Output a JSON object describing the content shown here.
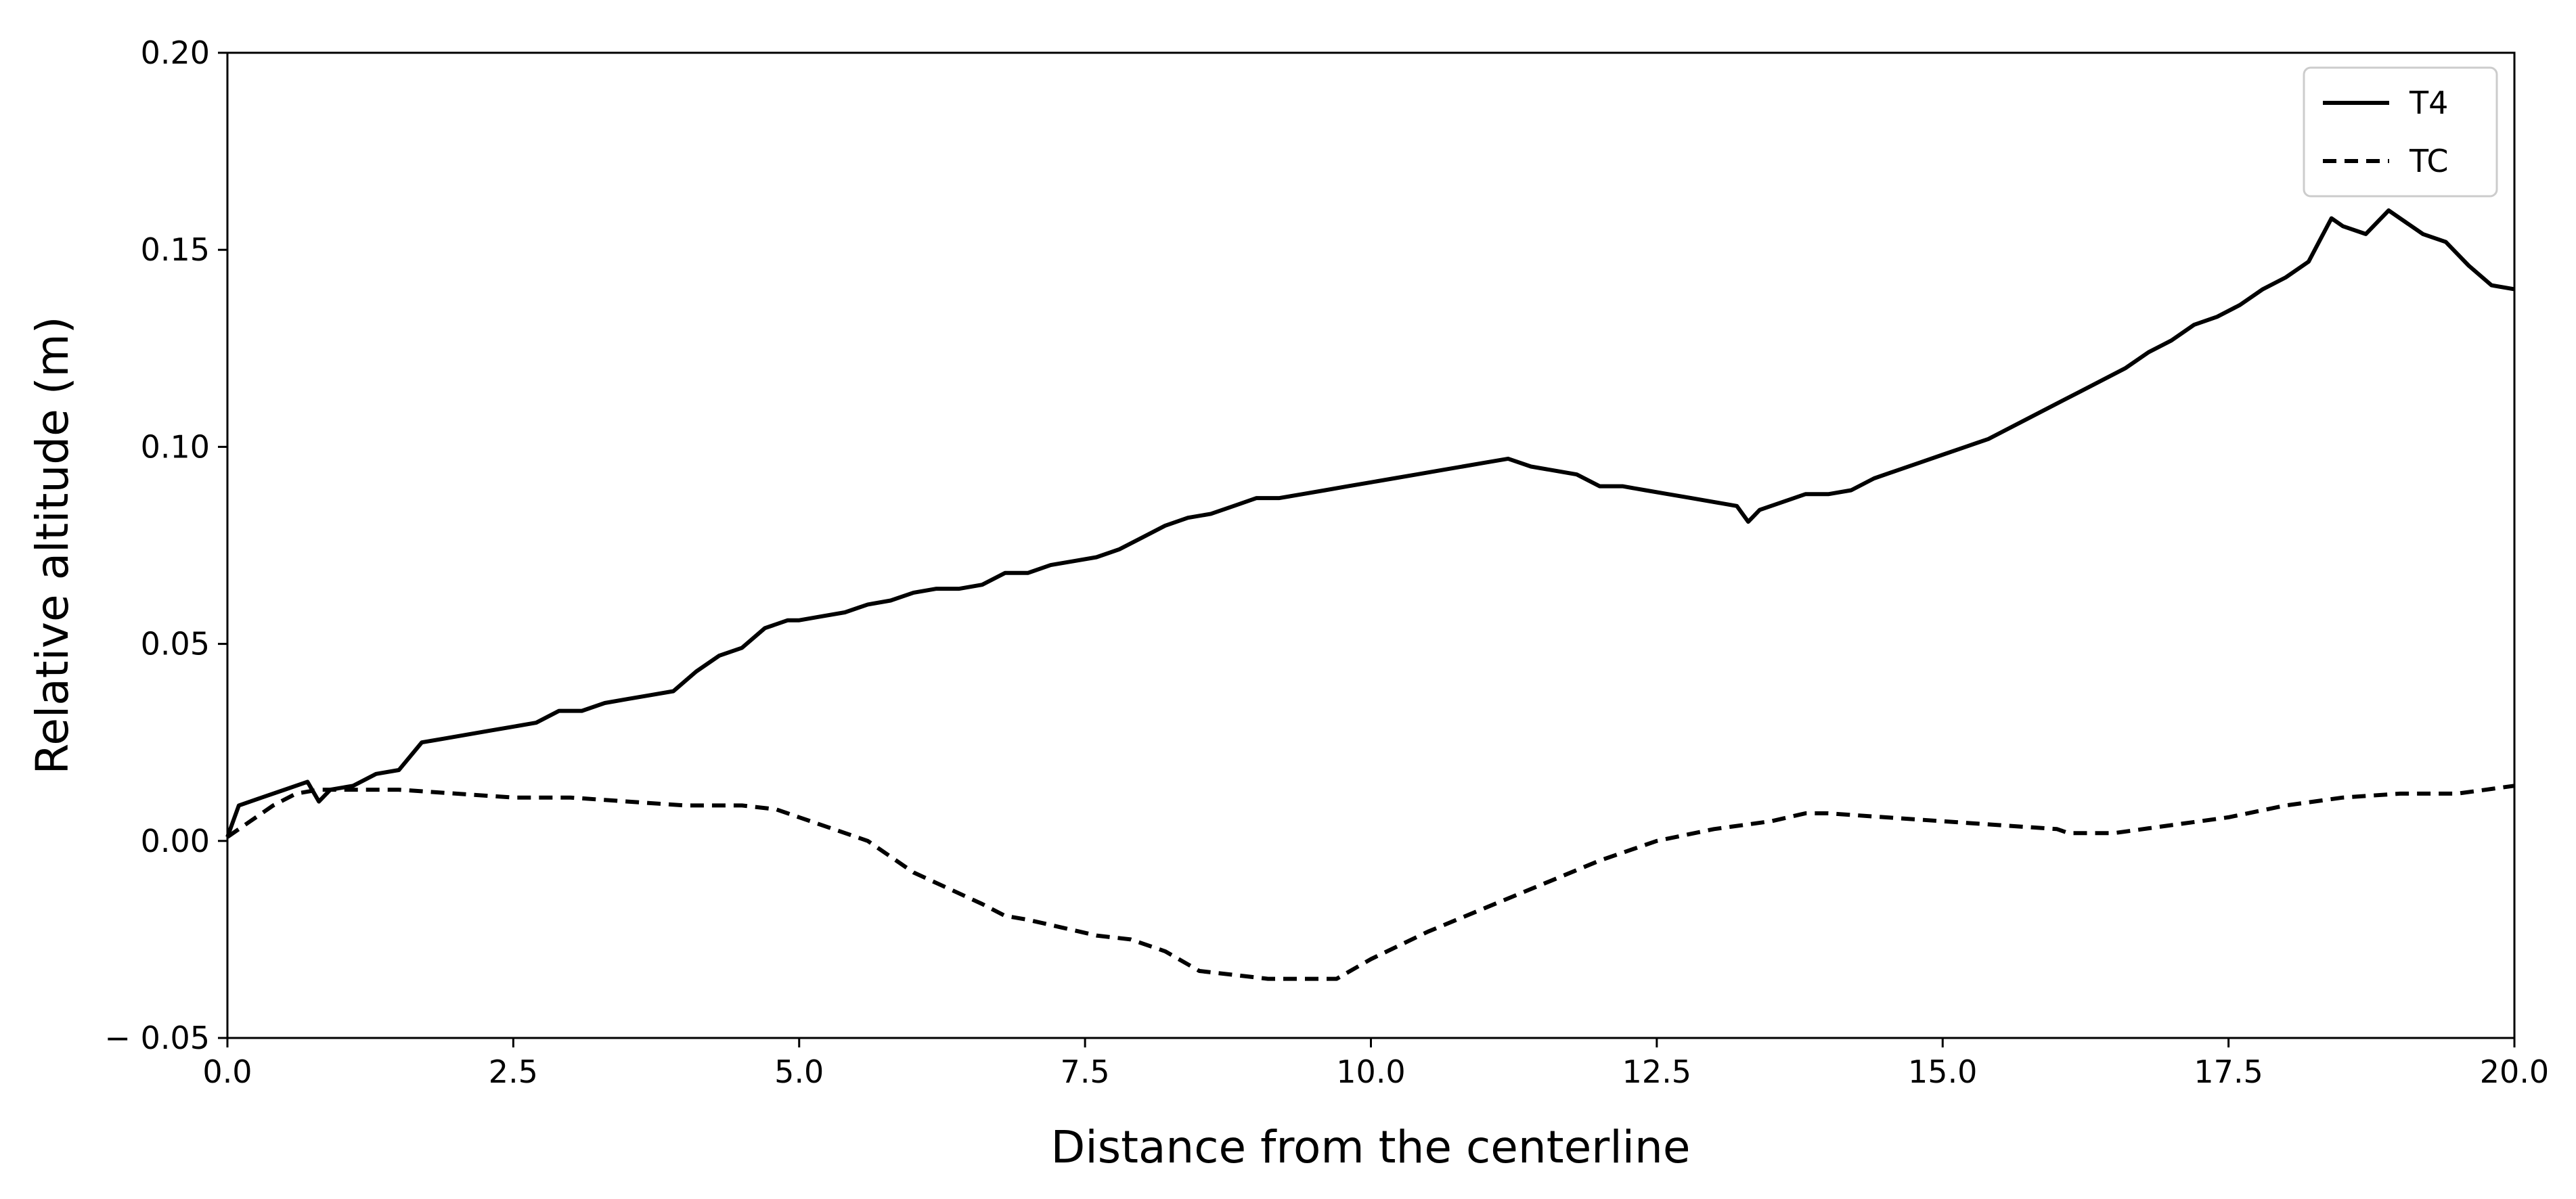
{
  "chart_data": {
    "type": "line",
    "title": "",
    "xlabel": "Distance from the centerline",
    "ylabel": "Relative altitude (m)",
    "xlim": [
      0,
      20
    ],
    "ylim": [
      -0.05,
      0.2
    ],
    "xticks": [
      0,
      2.5,
      5,
      7.5,
      10,
      12.5,
      15,
      17.5,
      20
    ],
    "xtick_labels": [
      "0.0",
      "2.5",
      "5.0",
      "7.5",
      "10.0",
      "12.5",
      "15.0",
      "17.5",
      "20.0"
    ],
    "yticks": [
      -0.05,
      0,
      0.05,
      0.1,
      0.15,
      0.2
    ],
    "ytick_labels": [
      "− 0.05",
      "0.00",
      "0.05",
      "0.10",
      "0.15",
      "0.20"
    ],
    "grid": false,
    "legend_position": "top-right",
    "series": [
      {
        "name": "T4",
        "style": "solid",
        "color": "#000000",
        "x": [
          0,
          0.1,
          0.3,
          0.5,
          0.7,
          0.8,
          0.9,
          1.1,
          1.3,
          1.5,
          1.7,
          1.9,
          2.1,
          2.3,
          2.5,
          2.7,
          2.9,
          3.1,
          3.3,
          3.5,
          3.7,
          3.9,
          4.1,
          4.3,
          4.5,
          4.7,
          4.9,
          5.0,
          5.2,
          5.4,
          5.6,
          5.8,
          6.0,
          6.2,
          6.4,
          6.6,
          6.8,
          7.0,
          7.2,
          7.4,
          7.6,
          7.8,
          8.0,
          8.2,
          8.4,
          8.6,
          8.8,
          9.0,
          9.2,
          9.4,
          9.6,
          9.8,
          10.0,
          10.2,
          10.4,
          10.6,
          10.8,
          11.0,
          11.2,
          11.4,
          11.6,
          11.8,
          12.0,
          12.2,
          12.4,
          12.6,
          12.8,
          13.0,
          13.2,
          13.3,
          13.4,
          13.6,
          13.8,
          14.0,
          14.2,
          14.4,
          14.6,
          14.8,
          15.0,
          15.2,
          15.4,
          15.6,
          15.8,
          16.0,
          16.2,
          16.4,
          16.6,
          16.8,
          17.0,
          17.2,
          17.4,
          17.6,
          17.8,
          18.0,
          18.2,
          18.4,
          18.5,
          18.7,
          18.9,
          19.0,
          19.2,
          19.4,
          19.6,
          19.8,
          20.0
        ],
        "y": [
          0.001,
          0.009,
          0.011,
          0.013,
          0.015,
          0.01,
          0.013,
          0.014,
          0.017,
          0.018,
          0.025,
          0.026,
          0.027,
          0.028,
          0.029,
          0.03,
          0.033,
          0.033,
          0.035,
          0.036,
          0.037,
          0.038,
          0.043,
          0.047,
          0.049,
          0.054,
          0.056,
          0.056,
          0.057,
          0.058,
          0.06,
          0.061,
          0.063,
          0.064,
          0.064,
          0.065,
          0.068,
          0.068,
          0.07,
          0.071,
          0.072,
          0.074,
          0.077,
          0.08,
          0.082,
          0.083,
          0.085,
          0.087,
          0.087,
          0.088,
          0.089,
          0.09,
          0.091,
          0.092,
          0.093,
          0.094,
          0.095,
          0.096,
          0.097,
          0.095,
          0.094,
          0.093,
          0.09,
          0.09,
          0.089,
          0.088,
          0.087,
          0.086,
          0.085,
          0.081,
          0.084,
          0.086,
          0.088,
          0.088,
          0.089,
          0.092,
          0.094,
          0.096,
          0.098,
          0.1,
          0.102,
          0.105,
          0.108,
          0.111,
          0.114,
          0.117,
          0.12,
          0.124,
          0.127,
          0.131,
          0.133,
          0.136,
          0.14,
          0.143,
          0.147,
          0.158,
          0.156,
          0.154,
          0.16,
          0.158,
          0.154,
          0.152,
          0.146,
          0.141,
          0.14
        ]
      },
      {
        "name": "TC",
        "style": "dashed",
        "color": "#000000",
        "x": [
          0,
          0.2,
          0.4,
          0.6,
          0.8,
          1.0,
          1.5,
          2.0,
          2.5,
          3.0,
          3.5,
          4.0,
          4.5,
          4.8,
          5.0,
          5.3,
          5.6,
          5.8,
          6.0,
          6.3,
          6.6,
          6.8,
          7.0,
          7.3,
          7.6,
          7.9,
          8.2,
          8.5,
          8.8,
          9.1,
          9.4,
          9.7,
          10.0,
          10.5,
          11.0,
          11.5,
          12.0,
          12.5,
          13.0,
          13.5,
          13.8,
          14.0,
          14.5,
          15.0,
          15.5,
          16.0,
          16.1,
          16.5,
          17.0,
          17.5,
          18.0,
          18.5,
          19.0,
          19.5,
          20.0
        ],
        "y": [
          0.001,
          0.005,
          0.009,
          0.012,
          0.013,
          0.013,
          0.013,
          0.012,
          0.011,
          0.011,
          0.01,
          0.009,
          0.009,
          0.008,
          0.006,
          0.003,
          0.0,
          -0.004,
          -0.008,
          -0.012,
          -0.016,
          -0.019,
          -0.02,
          -0.022,
          -0.024,
          -0.025,
          -0.028,
          -0.033,
          -0.034,
          -0.035,
          -0.035,
          -0.035,
          -0.03,
          -0.023,
          -0.017,
          -0.011,
          -0.005,
          0.0,
          0.003,
          0.005,
          0.007,
          0.007,
          0.006,
          0.005,
          0.004,
          0.003,
          0.002,
          0.002,
          0.004,
          0.006,
          0.009,
          0.011,
          0.012,
          0.012,
          0.014
        ]
      }
    ]
  }
}
